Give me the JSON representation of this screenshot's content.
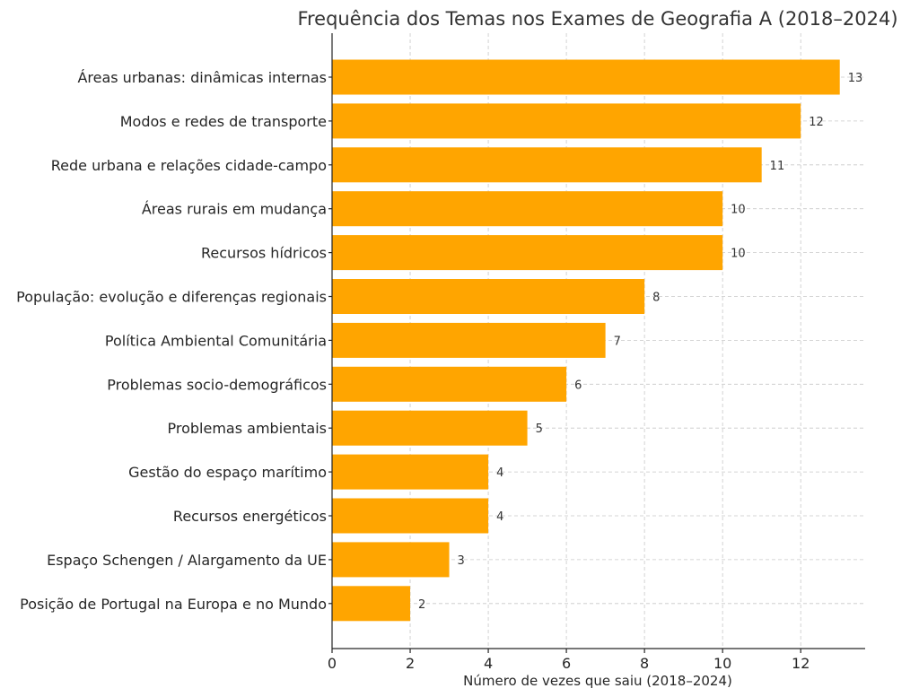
{
  "chart_data": {
    "type": "bar",
    "orientation": "horizontal",
    "title": "Frequência dos Temas nos Exames de Geografia A (2018–2024)",
    "xlabel": "Número de vezes que saiu (2018–2024)",
    "ylabel": "",
    "categories": [
      "Áreas urbanas: dinâmicas internas",
      "Modos e redes de transporte",
      "Rede urbana e relações cidade-campo",
      "Áreas rurais em mudança",
      "Recursos hídricos",
      "População: evolução e diferenças regionais",
      "Política Ambiental Comunitária",
      "Problemas socio-demográficos",
      "Problemas ambientais",
      "Gestão do espaço marítimo",
      "Recursos energéticos",
      "Espaço Schengen / Alargamento da UE",
      "Posição de Portugal na Europa e no Mundo"
    ],
    "values": [
      13,
      12,
      11,
      10,
      10,
      8,
      7,
      6,
      5,
      4,
      4,
      3,
      2
    ],
    "data_labels": [
      "13",
      "12",
      "11",
      "10",
      "10",
      "8",
      "7",
      "6",
      "5",
      "4",
      "4",
      "3",
      "2"
    ],
    "xticks": [
      0,
      2,
      4,
      6,
      8,
      10,
      12
    ],
    "xtick_labels": [
      "0",
      "2",
      "4",
      "6",
      "8",
      "10",
      "12"
    ],
    "xlim": [
      0,
      13.65
    ],
    "grid": true,
    "bar_color": "#FFA500"
  }
}
